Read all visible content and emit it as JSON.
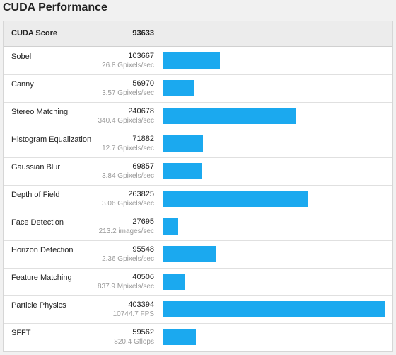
{
  "page": {
    "title": "CUDA Performance"
  },
  "header": {
    "name": "CUDA Score",
    "score": "93633"
  },
  "colors": {
    "bar": "#1ba9ef"
  },
  "chart_data": {
    "type": "bar",
    "title": "CUDA Performance",
    "categories": [
      "Sobel",
      "Canny",
      "Stereo Matching",
      "Histogram Equalization",
      "Gaussian Blur",
      "Depth of Field",
      "Face Detection",
      "Horizon Detection",
      "Feature Matching",
      "Particle Physics",
      "SFFT"
    ],
    "values": [
      103667,
      56970,
      240678,
      71882,
      69857,
      263825,
      27695,
      95548,
      40506,
      403394,
      59562
    ],
    "details": [
      "26.8 Gpixels/sec",
      "3.57 Gpixels/sec",
      "340.4 Gpixels/sec",
      "12.7 Gpixels/sec",
      "3.84 Gpixels/sec",
      "3.06 Gpixels/sec",
      "213.2 images/sec",
      "2.36 Gpixels/sec",
      "837.9 Mpixels/sec",
      "10744.7 FPS",
      "820.4 Gflops"
    ],
    "xlim": [
      0,
      403394
    ]
  }
}
